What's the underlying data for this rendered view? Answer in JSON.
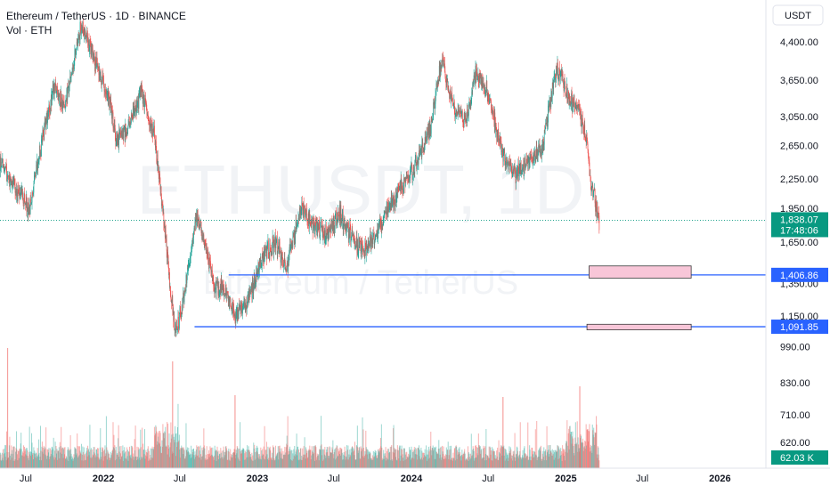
{
  "header": {
    "symbol_line": "Ethereum / TetherUS · 1D · BINANCE",
    "volume_line": "Vol · ETH"
  },
  "currency_button": {
    "label": "USDT"
  },
  "watermark": {
    "ticker": "ETHUSDT, 1D",
    "name": "Ethereum / TetherUS"
  },
  "colors": {
    "up": "#26a69a",
    "down": "#ef5350",
    "level_line": "#2962ff",
    "zone_fill": "#f8c6d8",
    "price_badge": "#089981"
  },
  "chart_data": {
    "type": "candlestick",
    "title": "Ethereum / TetherUS · 1D · BINANCE",
    "y_scale": "log",
    "ylim": [
      560,
      5000
    ],
    "xlim": [
      "2021-05-01",
      "2026-04-20"
    ],
    "x_ticks": [
      {
        "label": "Jul",
        "date": "2021-07-01"
      },
      {
        "label": "2022",
        "date": "2022-01-01"
      },
      {
        "label": "Jul",
        "date": "2022-07-01"
      },
      {
        "label": "2023",
        "date": "2023-01-01"
      },
      {
        "label": "Jul",
        "date": "2023-07-01"
      },
      {
        "label": "2024",
        "date": "2024-01-01"
      },
      {
        "label": "Jul",
        "date": "2024-07-01"
      },
      {
        "label": "2025",
        "date": "2025-01-01"
      },
      {
        "label": "Jul",
        "date": "2025-07-01"
      },
      {
        "label": "2026",
        "date": "2026-01-01"
      }
    ],
    "y_ticks": [
      {
        "label": "4,400.00",
        "value": 4400
      },
      {
        "label": "3,650.00",
        "value": 3650
      },
      {
        "label": "3,050.00",
        "value": 3050
      },
      {
        "label": "2,650.00",
        "value": 2650
      },
      {
        "label": "2,250.00",
        "value": 2250
      },
      {
        "label": "1,950.00",
        "value": 1950
      },
      {
        "label": "1,650.00",
        "value": 1650
      },
      {
        "label": "1,350.00",
        "value": 1350
      },
      {
        "label": "1,150.00",
        "value": 1150
      },
      {
        "label": "990.00",
        "value": 990
      },
      {
        "label": "830.00",
        "value": 830
      },
      {
        "label": "710.00",
        "value": 710
      },
      {
        "label": "620.00",
        "value": 620
      }
    ],
    "price_path": [
      [
        "2021-05-01",
        2450
      ],
      [
        "2021-05-20",
        2300
      ],
      [
        "2021-06-15",
        2100
      ],
      [
        "2021-07-10",
        1950
      ],
      [
        "2021-08-10",
        2750
      ],
      [
        "2021-09-05",
        3500
      ],
      [
        "2021-10-01",
        3200
      ],
      [
        "2021-11-10",
        4750
      ],
      [
        "2021-12-10",
        4050
      ],
      [
        "2022-01-15",
        3300
      ],
      [
        "2022-02-01",
        2700
      ],
      [
        "2022-03-01",
        2900
      ],
      [
        "2022-04-01",
        3450
      ],
      [
        "2022-05-01",
        2800
      ],
      [
        "2022-05-20",
        2000
      ],
      [
        "2022-06-20",
        1050
      ],
      [
        "2022-07-10",
        1250
      ],
      [
        "2022-08-10",
        1900
      ],
      [
        "2022-09-01",
        1600
      ],
      [
        "2022-09-20",
        1350
      ],
      [
        "2022-10-20",
        1300
      ],
      [
        "2022-11-10",
        1150
      ],
      [
        "2022-12-10",
        1250
      ],
      [
        "2023-01-15",
        1550
      ],
      [
        "2023-02-15",
        1650
      ],
      [
        "2023-03-10",
        1450
      ],
      [
        "2023-04-15",
        1950
      ],
      [
        "2023-05-15",
        1800
      ],
      [
        "2023-06-15",
        1700
      ],
      [
        "2023-07-15",
        1900
      ],
      [
        "2023-08-20",
        1650
      ],
      [
        "2023-09-15",
        1600
      ],
      [
        "2023-10-20",
        1800
      ],
      [
        "2023-11-15",
        2000
      ],
      [
        "2023-12-20",
        2250
      ],
      [
        "2024-01-15",
        2450
      ],
      [
        "2024-02-15",
        2900
      ],
      [
        "2024-03-12",
        4000
      ],
      [
        "2024-04-15",
        3100
      ],
      [
        "2024-05-10",
        3000
      ],
      [
        "2024-06-01",
        3800
      ],
      [
        "2024-07-01",
        3400
      ],
      [
        "2024-08-05",
        2500
      ],
      [
        "2024-09-05",
        2300
      ],
      [
        "2024-10-05",
        2450
      ],
      [
        "2024-11-05",
        2600
      ],
      [
        "2024-12-10",
        3900
      ],
      [
        "2025-01-10",
        3300
      ],
      [
        "2025-01-30",
        3200
      ],
      [
        "2025-02-20",
        2700
      ],
      [
        "2025-03-01",
        2200
      ],
      [
        "2025-03-21",
        1838
      ]
    ],
    "last_price": {
      "label": "1,838.07",
      "value": 1838.07,
      "countdown": "17:48:06"
    },
    "levels": [
      {
        "label": "1,406.86",
        "value": 1406.86,
        "start": "2022-10-25"
      },
      {
        "label": "1,091.85",
        "value": 1091.85,
        "start": "2022-08-05"
      }
    ],
    "zones": [
      {
        "start": "2025-02-25",
        "end": "2025-10-25",
        "high": 1470,
        "low": 1385
      },
      {
        "start": "2025-02-20",
        "end": "2025-10-25",
        "high": 1105,
        "low": 1075
      }
    ],
    "volume": {
      "last_label": "62.03 K",
      "last_value": 62030
    }
  }
}
